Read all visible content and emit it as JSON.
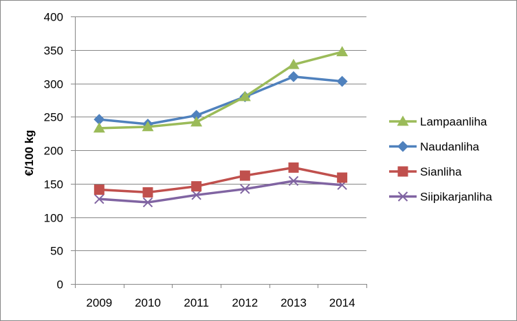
{
  "chart_data": {
    "type": "line",
    "title": "",
    "xlabel": "",
    "ylabel": "€/100 kg",
    "ylim": [
      0,
      400
    ],
    "yticks": [
      0,
      50,
      100,
      150,
      200,
      250,
      300,
      350,
      400
    ],
    "x": [
      "2009",
      "2010",
      "2011",
      "2012",
      "2013",
      "2014"
    ],
    "grid": "horizontal major gridlines",
    "legend_position": "right",
    "series": [
      {
        "name": "Lampaanliha",
        "color": "#9BBB59",
        "marker": "triangle",
        "values": [
          233,
          235,
          242,
          280,
          328,
          347
        ]
      },
      {
        "name": "Naudanliha",
        "color": "#4F81BD",
        "marker": "diamond",
        "values": [
          246,
          239,
          252,
          280,
          310,
          303
        ]
      },
      {
        "name": "Sianliha",
        "color": "#C0504D",
        "marker": "square",
        "values": [
          141,
          137,
          146,
          162,
          174,
          159
        ]
      },
      {
        "name": "Siipikarjanliha",
        "color": "#8064A2",
        "marker": "x",
        "values": [
          127,
          122,
          133,
          142,
          154,
          148
        ]
      }
    ]
  }
}
